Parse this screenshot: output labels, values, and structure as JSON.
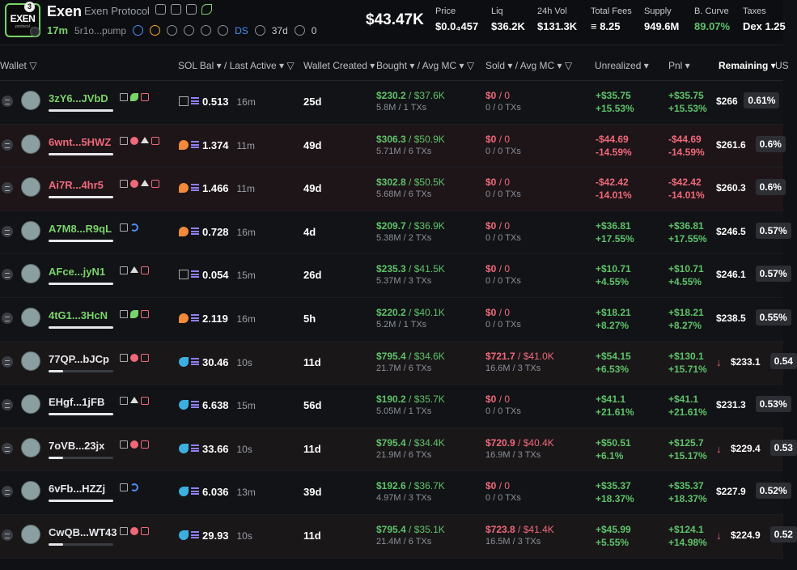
{
  "header": {
    "logo_text": "EXEN",
    "logo_sub": "protocol",
    "logo_badge": "3",
    "token_name": "Exen",
    "token_full_name": "Exen Protocol",
    "age": "17m",
    "address": "5r1o...pump",
    "ds_label": "DS",
    "days": "37d",
    "holders_count": "0",
    "market_cap": "$43.47K",
    "stats": [
      {
        "label": "Price",
        "value": "$0.0₄457"
      },
      {
        "label": "Liq",
        "value": "$36.2K"
      },
      {
        "label": "24h Vol",
        "value": "$131.3K"
      },
      {
        "label": "Total Fees",
        "value": "≡ 8.25"
      },
      {
        "label": "Supply",
        "value": "949.6M"
      },
      {
        "label": "B. Curve",
        "value": "89.07%"
      },
      {
        "label": "Taxes",
        "value": "Dex 1.25"
      }
    ]
  },
  "columns": {
    "wallet": "Wallet ▽",
    "sol_bal": "SOL Bal ▾ / Last Active ▾ ▽",
    "created": "Wallet Created ▾",
    "bought": "Bought ▾ / Avg MC ▾ ▽",
    "sold": "Sold ▾ / Avg MC ▾ ▽",
    "unrealized": "Unrealized ▾",
    "pnl": "Pnl ▾",
    "remaining": "Remaining ▾",
    "extra": "US"
  },
  "rows": [
    {
      "wallet": "3zY6...JVbD",
      "color": "g",
      "tags": [
        "pen",
        "leaf",
        "stack"
      ],
      "bar": 1.0,
      "sol_icon": "sq",
      "sol_bal": "0.513",
      "last": "16m",
      "created": "25d",
      "bought": "$230.2",
      "bought_mc": "$37.6K",
      "bought_sub": "5.8M / 1 TXs",
      "sold": "$0",
      "sold_mc": "0",
      "sold_sub": "0 / 0 TXs",
      "unreal": "+$35.75",
      "unreal_pct": "+15.53%",
      "pnl": "+$35.75",
      "pnl_pct": "+15.53%",
      "neg": false,
      "arrow": "",
      "remaining": "$266",
      "rem_pct": "0.61%"
    },
    {
      "wallet": "6wnt...5HWZ",
      "color": "r",
      "tags": [
        "pen",
        "dot",
        "tri",
        "stack"
      ],
      "bar": 1.0,
      "sol_icon": "shrimp",
      "sol_bal": "1.374",
      "last": "11m",
      "created": "49d",
      "bought": "$306.3",
      "bought_mc": "$50.9K",
      "bought_sub": "5.71M / 6 TXs",
      "sold": "$0",
      "sold_mc": "0",
      "sold_sub": "0 / 0 TXs",
      "unreal": "-$44.69",
      "unreal_pct": "-14.59%",
      "pnl": "-$44.69",
      "pnl_pct": "-14.59%",
      "neg": true,
      "arrow": "",
      "remaining": "$261.6",
      "rem_pct": "0.6%"
    },
    {
      "wallet": "Ai7R...4hr5",
      "color": "r",
      "tags": [
        "pen",
        "dot",
        "tri",
        "stack"
      ],
      "bar": 1.0,
      "sol_icon": "shrimp",
      "sol_bal": "1.466",
      "last": "11m",
      "created": "49d",
      "bought": "$302.8",
      "bought_mc": "$50.5K",
      "bought_sub": "5.68M / 6 TXs",
      "sold": "$0",
      "sold_mc": "0",
      "sold_sub": "0 / 0 TXs",
      "unreal": "-$42.42",
      "unreal_pct": "-14.01%",
      "pnl": "-$42.42",
      "pnl_pct": "-14.01%",
      "neg": true,
      "arrow": "",
      "remaining": "$260.3",
      "rem_pct": "0.6%"
    },
    {
      "wallet": "A7M8...R9qL",
      "color": "g",
      "tags": [
        "pen",
        "wave"
      ],
      "bar": 1.0,
      "sol_icon": "shrimp",
      "sol_bal": "0.728",
      "last": "16m",
      "created": "4d",
      "bought": "$209.7",
      "bought_mc": "$36.9K",
      "bought_sub": "5.38M / 2 TXs",
      "sold": "$0",
      "sold_mc": "0",
      "sold_sub": "0 / 0 TXs",
      "unreal": "+$36.81",
      "unreal_pct": "+17.55%",
      "pnl": "+$36.81",
      "pnl_pct": "+17.55%",
      "neg": false,
      "arrow": "",
      "remaining": "$246.5",
      "rem_pct": "0.57%"
    },
    {
      "wallet": "AFce...jyN1",
      "color": "g",
      "tags": [
        "pen",
        "tri",
        "stack"
      ],
      "bar": 1.0,
      "sol_icon": "sq",
      "sol_bal": "0.054",
      "last": "15m",
      "created": "26d",
      "bought": "$235.3",
      "bought_mc": "$41.5K",
      "bought_sub": "5.37M / 3 TXs",
      "sold": "$0",
      "sold_mc": "0",
      "sold_sub": "0 / 0 TXs",
      "unreal": "+$10.71",
      "unreal_pct": "+4.55%",
      "pnl": "+$10.71",
      "pnl_pct": "+4.55%",
      "neg": false,
      "arrow": "",
      "remaining": "$246.1",
      "rem_pct": "0.57%"
    },
    {
      "wallet": "4tG1...3HcN",
      "color": "g",
      "tags": [
        "pen",
        "leaf",
        "stack"
      ],
      "bar": 1.0,
      "sol_icon": "shrimp",
      "sol_bal": "2.119",
      "last": "16m",
      "created": "5h",
      "bought": "$220.2",
      "bought_mc": "$40.1K",
      "bought_sub": "5.2M / 1 TXs",
      "sold": "$0",
      "sold_mc": "0",
      "sold_sub": "0 / 0 TXs",
      "unreal": "+$18.21",
      "unreal_pct": "+8.27%",
      "pnl": "+$18.21",
      "pnl_pct": "+8.27%",
      "neg": false,
      "arrow": "",
      "remaining": "$238.5",
      "rem_pct": "0.55%"
    },
    {
      "wallet": "77QP...bJCp",
      "color": "w",
      "tags": [
        "pen",
        "dot",
        "stack"
      ],
      "bar": 0.22,
      "sol_icon": "fish",
      "sol_bal": "30.46",
      "last": "10s",
      "created": "11d",
      "bought": "$795.4",
      "bought_mc": "$34.6K",
      "bought_sub": "21.7M / 6 TXs",
      "sold": "$721.7",
      "sold_mc": "$41.0K",
      "sold_sub": "16.6M / 3 TXs",
      "unreal": "+$54.15",
      "unreal_pct": "+6.53%",
      "pnl": "+$130.1",
      "pnl_pct": "+15.71%",
      "neg": false,
      "arrow": "↓",
      "remaining": "$233.1",
      "rem_pct": "0.54"
    },
    {
      "wallet": "EHgf...1jFB",
      "color": "w",
      "tags": [
        "pen",
        "tri",
        "stack"
      ],
      "bar": 1.0,
      "sol_icon": "fish",
      "sol_bal": "6.638",
      "last": "15m",
      "created": "56d",
      "bought": "$190.2",
      "bought_mc": "$35.7K",
      "bought_sub": "5.05M / 1 TXs",
      "sold": "$0",
      "sold_mc": "0",
      "sold_sub": "0 / 0 TXs",
      "unreal": "+$41.1",
      "unreal_pct": "+21.61%",
      "pnl": "+$41.1",
      "pnl_pct": "+21.61%",
      "neg": false,
      "arrow": "",
      "remaining": "$231.3",
      "rem_pct": "0.53%"
    },
    {
      "wallet": "7oVB...23jx",
      "color": "w",
      "tags": [
        "pen",
        "dot",
        "stack"
      ],
      "bar": 0.22,
      "sol_icon": "fish",
      "sol_bal": "33.66",
      "last": "10s",
      "created": "11d",
      "bought": "$795.4",
      "bought_mc": "$34.4K",
      "bought_sub": "21.9M / 6 TXs",
      "sold": "$720.9",
      "sold_mc": "$40.4K",
      "sold_sub": "16.9M / 3 TXs",
      "unreal": "+$50.51",
      "unreal_pct": "+6.1%",
      "pnl": "+$125.7",
      "pnl_pct": "+15.17%",
      "neg": false,
      "arrow": "↓",
      "remaining": "$229.4",
      "rem_pct": "0.53"
    },
    {
      "wallet": "6vFb...HZZj",
      "color": "w",
      "tags": [
        "pen",
        "wave"
      ],
      "bar": 1.0,
      "sol_icon": "fish",
      "sol_bal": "6.036",
      "last": "13m",
      "created": "39d",
      "bought": "$192.6",
      "bought_mc": "$36.7K",
      "bought_sub": "4.97M / 3 TXs",
      "sold": "$0",
      "sold_mc": "0",
      "sold_sub": "0 / 0 TXs",
      "unreal": "+$35.37",
      "unreal_pct": "+18.37%",
      "pnl": "+$35.37",
      "pnl_pct": "+18.37%",
      "neg": false,
      "arrow": "",
      "remaining": "$227.9",
      "rem_pct": "0.52%"
    },
    {
      "wallet": "CwQB...WT43",
      "color": "w",
      "tags": [
        "pen",
        "dot",
        "stack"
      ],
      "bar": 0.22,
      "sol_icon": "fish",
      "sol_bal": "29.93",
      "last": "10s",
      "created": "11d",
      "bought": "$795.4",
      "bought_mc": "$35.1K",
      "bought_sub": "21.4M / 6 TXs",
      "sold": "$723.8",
      "sold_mc": "$41.4K",
      "sold_sub": "16.5M / 3 TXs",
      "unreal": "+$45.99",
      "unreal_pct": "+5.55%",
      "pnl": "+$124.1",
      "pnl_pct": "+14.98%",
      "neg": false,
      "arrow": "↓",
      "remaining": "$224.9",
      "rem_pct": "0.52"
    }
  ]
}
